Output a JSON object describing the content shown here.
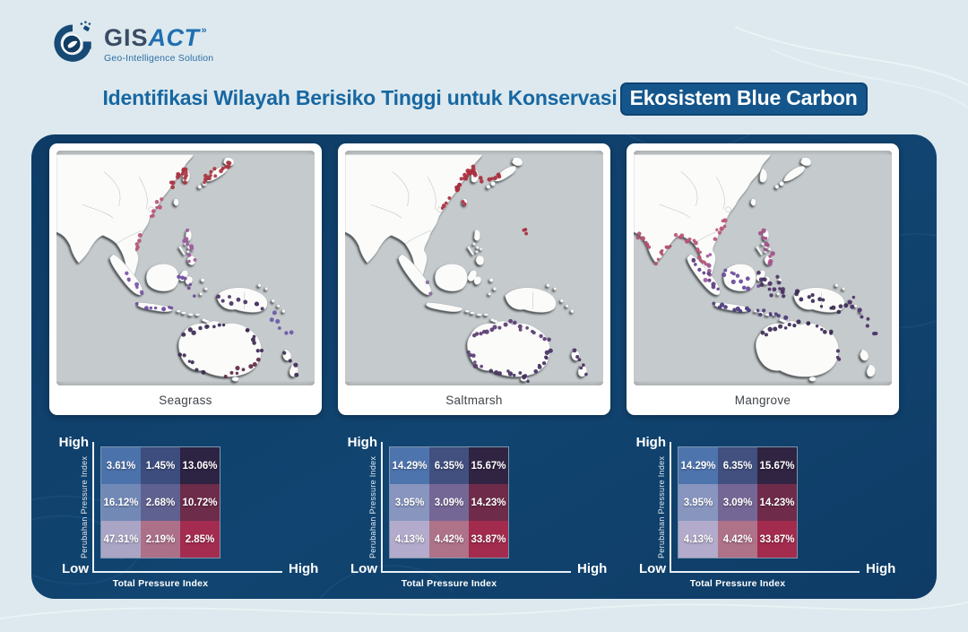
{
  "logo": {
    "gis": "GIS",
    "act": "ACT",
    "suffix": "»",
    "tagline": "Geo-Intelligence Solution"
  },
  "title": {
    "prefix": "Identifikasi Wilayah Berisiko Tinggi untuk Konservasi",
    "highlight": "Ekosistem Blue Carbon"
  },
  "colors": {
    "page_background": "#dde9ee",
    "panel_background": "#0f3f6b",
    "title_text": "#1767a2",
    "title_highlight_background": "#14568c",
    "map_ocean": "#c5cacd",
    "map_land": "#fbfbfa",
    "axis_text": "#ffffff"
  },
  "maps": [
    {
      "label": "Seagrass",
      "clusters": [
        {
          "from": [
            170,
            30
          ],
          "to": [
            200,
            12
          ],
          "n": 16,
          "color": "#a93441",
          "j": 5
        },
        {
          "from": [
            148,
            18
          ],
          "to": [
            152,
            30
          ],
          "n": 6,
          "color": "#a93441",
          "j": 3
        },
        {
          "from": [
            134,
            36
          ],
          "to": [
            148,
            16
          ],
          "n": 8,
          "color": "#a93441",
          "j": 3
        },
        {
          "from": [
            108,
            74
          ],
          "to": [
            122,
            52
          ],
          "n": 7,
          "color": "#b85577",
          "j": 3
        },
        {
          "from": [
            92,
            112
          ],
          "to": [
            98,
            96
          ],
          "n": 5,
          "color": "#b85577",
          "j": 3
        },
        {
          "from": [
            150,
            90
          ],
          "to": [
            158,
            126
          ],
          "n": 9,
          "color": "#9c5a9e",
          "j": 4
        },
        {
          "from": [
            80,
            140
          ],
          "to": [
            100,
            162
          ],
          "n": 7,
          "color": "#7a57a8",
          "j": 4
        },
        {
          "from": [
            96,
            176
          ],
          "to": [
            136,
            180
          ],
          "n": 7,
          "color": "#6a4a9a",
          "j": 3
        },
        {
          "from": [
            142,
            140
          ],
          "to": [
            160,
            160
          ],
          "n": 6,
          "color": "#6a4a9a",
          "j": 5
        },
        {
          "from": [
            186,
            166
          ],
          "to": [
            244,
            180
          ],
          "n": 9,
          "color": "#4a3163",
          "j": 5
        },
        {
          "from": [
            150,
            208
          ],
          "to": [
            196,
            196
          ],
          "n": 9,
          "color": "#3b2a52",
          "j": 3
        },
        {
          "from": [
            222,
            202
          ],
          "to": [
            238,
            230
          ],
          "n": 7,
          "color": "#3b2a52",
          "j": 3
        },
        {
          "from": [
            236,
            240
          ],
          "to": [
            196,
            258
          ],
          "n": 8,
          "color": "#5d2a46",
          "j": 3
        },
        {
          "from": [
            170,
            252
          ],
          "to": [
            144,
            230
          ],
          "n": 6,
          "color": "#3b2a52",
          "j": 3
        },
        {
          "from": [
            250,
            186
          ],
          "to": [
            270,
            210
          ],
          "n": 6,
          "color": "#6a5aa8",
          "j": 5
        },
        {
          "from": [
            266,
            230
          ],
          "to": [
            280,
            254
          ],
          "n": 4,
          "color": "#3b2a52",
          "j": 3
        }
      ]
    },
    {
      "label": "Saltmarsh",
      "clusters": [
        {
          "from": [
            148,
            14
          ],
          "to": [
            128,
            42
          ],
          "n": 18,
          "color": "#a92f3e",
          "j": 2.5
        },
        {
          "from": [
            150,
            18
          ],
          "to": [
            158,
            30
          ],
          "n": 5,
          "color": "#a92f3e",
          "j": 3
        },
        {
          "from": [
            168,
            32
          ],
          "to": [
            182,
            24
          ],
          "n": 5,
          "color": "#a92f3e",
          "j": 3
        },
        {
          "from": [
            120,
            52
          ],
          "to": [
            112,
            62
          ],
          "n": 4,
          "color": "#a92f3e",
          "j": 2
        },
        {
          "from": [
            137,
            54
          ],
          "to": [
            140,
            58
          ],
          "n": 2,
          "color": "#a92f3e",
          "j": 1
        },
        {
          "from": [
            206,
            86
          ],
          "to": [
            212,
            92
          ],
          "n": 3,
          "color": "#a92f3e",
          "j": 2
        },
        {
          "from": [
            148,
            210
          ],
          "to": [
            190,
            196
          ],
          "n": 10,
          "color": "#5a3c72",
          "j": 2.5
        },
        {
          "from": [
            196,
            198
          ],
          "to": [
            236,
            214
          ],
          "n": 9,
          "color": "#5a3c72",
          "j": 2.5
        },
        {
          "from": [
            238,
            226
          ],
          "to": [
            224,
            252
          ],
          "n": 8,
          "color": "#45315e",
          "j": 2.5
        },
        {
          "from": [
            210,
            257
          ],
          "to": [
            170,
            251
          ],
          "n": 8,
          "color": "#45315e",
          "j": 2.5
        },
        {
          "from": [
            156,
            248
          ],
          "to": [
            143,
            228
          ],
          "n": 6,
          "color": "#5a3c72",
          "j": 2.5
        },
        {
          "from": [
            206,
            258
          ],
          "to": [
            212,
            262
          ],
          "n": 3,
          "color": "#45315e",
          "j": 2
        },
        {
          "from": [
            265,
            228
          ],
          "to": [
            280,
            256
          ],
          "n": 6,
          "color": "#45315e",
          "j": 3
        },
        {
          "from": [
            100,
            160
          ],
          "to": [
            96,
            150
          ],
          "n": 2,
          "color": "#8a6aa0",
          "j": 2
        }
      ]
    },
    {
      "label": "Mangrove",
      "clusters": [
        {
          "from": [
            4,
            92
          ],
          "to": [
            18,
            108
          ],
          "n": 8,
          "color": "#b0506e",
          "j": 3
        },
        {
          "from": [
            26,
            124
          ],
          "to": [
            42,
            104
          ],
          "n": 8,
          "color": "#b0506e",
          "j": 3
        },
        {
          "from": [
            52,
            94
          ],
          "to": [
            70,
            104
          ],
          "n": 8,
          "color": "#b85577",
          "j": 3
        },
        {
          "from": [
            72,
            108
          ],
          "to": [
            84,
            130
          ],
          "n": 8,
          "color": "#b85577",
          "j": 3
        },
        {
          "from": [
            96,
            96
          ],
          "to": [
            108,
            76
          ],
          "n": 8,
          "color": "#b85577",
          "j": 3
        },
        {
          "from": [
            88,
            116
          ],
          "to": [
            86,
            146
          ],
          "n": 7,
          "color": "#9c5a9e",
          "j": 3
        },
        {
          "from": [
            150,
            88
          ],
          "to": [
            160,
            126
          ],
          "n": 11,
          "color": "#a14f88",
          "j": 4
        },
        {
          "from": [
            106,
            136
          ],
          "to": [
            140,
            154
          ],
          "n": 11,
          "color": "#6a4a9a",
          "j": 5
        },
        {
          "from": [
            66,
            120
          ],
          "to": [
            98,
            160
          ],
          "n": 10,
          "color": "#5d3f86",
          "j": 4
        },
        {
          "from": [
            94,
            176
          ],
          "to": [
            136,
            182
          ],
          "n": 9,
          "color": "#4a3a78",
          "j": 3
        },
        {
          "from": [
            142,
            182
          ],
          "to": [
            176,
            190
          ],
          "n": 8,
          "color": "#4a3a78",
          "j": 3
        },
        {
          "from": [
            144,
            138
          ],
          "to": [
            162,
            162
          ],
          "n": 9,
          "color": "#4a3163",
          "j": 5
        },
        {
          "from": [
            166,
            146
          ],
          "to": [
            176,
            164
          ],
          "n": 6,
          "color": "#4a3163",
          "j": 4
        },
        {
          "from": [
            186,
            162
          ],
          "to": [
            246,
            180
          ],
          "n": 14,
          "color": "#3a2a52",
          "j": 5
        },
        {
          "from": [
            150,
            208
          ],
          "to": [
            200,
            196
          ],
          "n": 10,
          "color": "#3a2a52",
          "j": 3
        },
        {
          "from": [
            206,
            198
          ],
          "to": [
            232,
            208
          ],
          "n": 6,
          "color": "#3a2a52",
          "j": 3
        },
        {
          "from": [
            250,
            168
          ],
          "to": [
            285,
            212
          ],
          "n": 9,
          "color": "#4a3163",
          "j": 6
        },
        {
          "from": [
            236,
            228
          ],
          "to": [
            240,
            240
          ],
          "n": 3,
          "color": "#4a3163",
          "j": 2
        }
      ]
    }
  ],
  "chart_data": [
    {
      "type": "heatmap",
      "title": "Seagrass",
      "xlabel": "Total Pressure Index",
      "ylabel": "Perubahan Pressure Index",
      "legend_position": "none",
      "x_axis_ends": [
        "Low",
        "High"
      ],
      "y_axis_ends": [
        "Low",
        "High"
      ],
      "labels": {
        "y_high": "High",
        "y_low": "Low",
        "x_high": "High"
      },
      "rows_top_to_bottom": [
        [
          "3.61%",
          "1.45%",
          "13.06%"
        ],
        [
          "16.12%",
          "2.68%",
          "10.72%"
        ],
        [
          "47.31%",
          "2.19%",
          "2.85%"
        ]
      ],
      "cell_colors": [
        [
          "#4c72ab",
          "#3c4d7e",
          "#2d2342"
        ],
        [
          "#7289b6",
          "#5f6190",
          "#6c2c4a"
        ],
        [
          "#aaa5c5",
          "#ac7089",
          "#a32c50"
        ]
      ]
    },
    {
      "type": "heatmap",
      "title": "Saltmarsh",
      "xlabel": "Total Pressure Index",
      "ylabel": "Perubahan Pressure Index",
      "legend_position": "none",
      "x_axis_ends": [
        "Low",
        "High"
      ],
      "y_axis_ends": [
        "Low",
        "High"
      ],
      "labels": {
        "y_high": "High",
        "y_low": "Low",
        "x_high": "High"
      },
      "rows_top_to_bottom": [
        [
          "14.29%",
          "6.35%",
          "15.67%"
        ],
        [
          "3.95%",
          "3.09%",
          "14.23%"
        ],
        [
          "4.13%",
          "4.42%",
          "33.87%"
        ]
      ],
      "cell_colors": [
        [
          "#4e74ae",
          "#41507f",
          "#302442"
        ],
        [
          "#8795bf",
          "#746795",
          "#6e2c4a"
        ],
        [
          "#b2abcb",
          "#ae7289",
          "#a22b4e"
        ]
      ]
    },
    {
      "type": "heatmap",
      "title": "Mangrove",
      "xlabel": "Total Pressure Index",
      "ylabel": "Perubahan Pressure Index",
      "legend_position": "none",
      "x_axis_ends": [
        "Low",
        "High"
      ],
      "y_axis_ends": [
        "Low",
        "High"
      ],
      "labels": {
        "y_high": "High",
        "y_low": "Low",
        "x_high": "High"
      },
      "rows_top_to_bottom": [
        [
          "14.29%",
          "6.35%",
          "15.67%"
        ],
        [
          "3.95%",
          "3.09%",
          "14.23%"
        ],
        [
          "4.13%",
          "4.42%",
          "33.87%"
        ]
      ],
      "cell_colors": [
        [
          "#4e74ae",
          "#41507f",
          "#302442"
        ],
        [
          "#8795bf",
          "#746795",
          "#6e2c4a"
        ],
        [
          "#b2abcb",
          "#ae7289",
          "#a22b4e"
        ]
      ]
    }
  ]
}
